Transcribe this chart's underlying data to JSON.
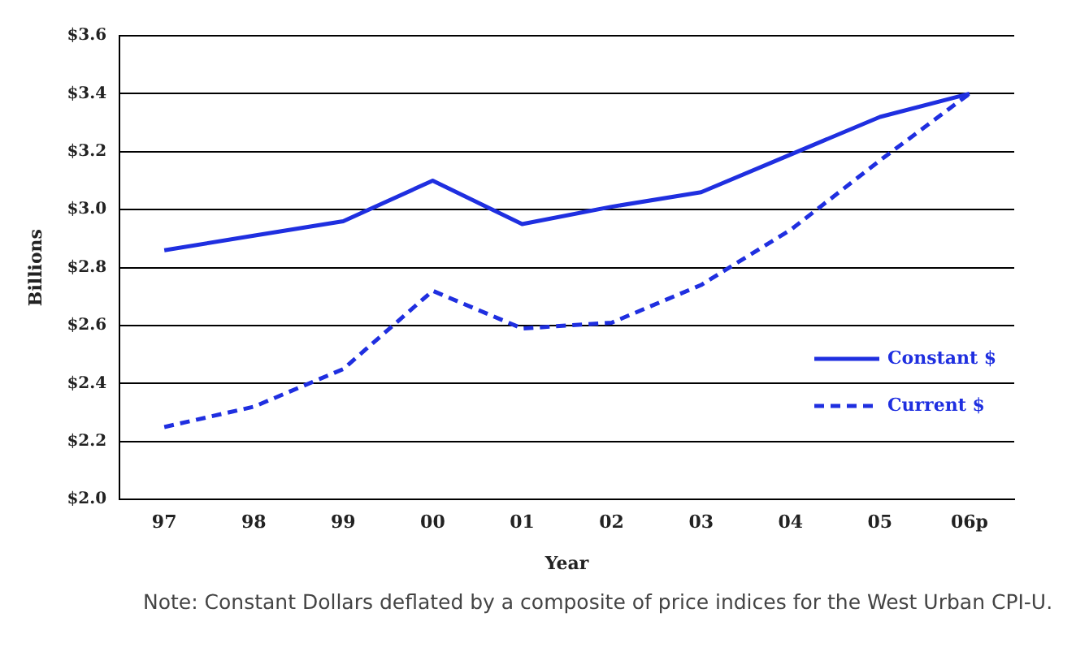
{
  "chart_data": {
    "type": "line",
    "xlabel": "Year",
    "ylabel": "Billions",
    "categories": [
      "97",
      "98",
      "99",
      "00",
      "01",
      "02",
      "03",
      "04",
      "05",
      "06p"
    ],
    "series": [
      {
        "name": "Constant $",
        "color": "#1f2fe0",
        "line_style": "solid",
        "values": [
          2.86,
          2.91,
          2.96,
          3.1,
          2.95,
          3.01,
          3.06,
          3.19,
          3.32,
          3.4
        ]
      },
      {
        "name": "Current $",
        "color": "#1f2fe0",
        "line_style": "dashed",
        "values": [
          2.25,
          2.32,
          2.45,
          2.72,
          2.59,
          2.61,
          2.74,
          2.93,
          3.17,
          3.4
        ]
      }
    ],
    "ylim": [
      2.0,
      3.6
    ],
    "yticks": [
      {
        "value": 2.0,
        "label": "$2.0"
      },
      {
        "value": 2.2,
        "label": "$2.2"
      },
      {
        "value": 2.4,
        "label": "$2.4"
      },
      {
        "value": 2.6,
        "label": "$2.6"
      },
      {
        "value": 2.8,
        "label": "$2.8"
      },
      {
        "value": 3.0,
        "label": "$3.0"
      },
      {
        "value": 3.2,
        "label": "$3.2"
      },
      {
        "value": 3.4,
        "label": "$3.4"
      },
      {
        "value": 3.6,
        "label": "$3.6"
      }
    ],
    "grid": "y",
    "marker": "none",
    "legend": "bottom right",
    "annotations": [
      "Note:  Constant Dollars deflated by a composite of price indices for the West Urban CPI-U."
    ]
  }
}
